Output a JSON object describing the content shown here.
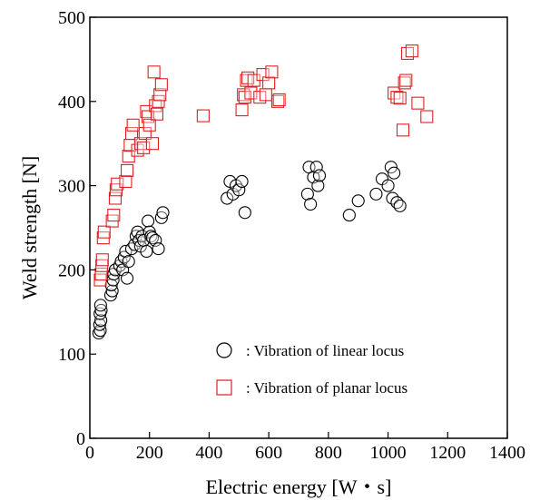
{
  "chart_data": {
    "type": "scatter",
    "xlabel": "Electric energy [W・s]",
    "ylabel": "Weld strength [N]",
    "xlim": [
      0,
      1400
    ],
    "ylim": [
      0,
      500
    ],
    "xticks": [
      "0",
      "200",
      "400",
      "600",
      "800",
      "1000",
      "1200",
      "1400"
    ],
    "yticks": [
      "0",
      "100",
      "200",
      "300",
      "400",
      "500"
    ],
    "grid": false,
    "legend_position": "bottom-right",
    "series": [
      {
        "label": ": Vibration of linear locus",
        "marker": "circle",
        "color": "#000000",
        "points": [
          [
            30,
            125
          ],
          [
            35,
            128
          ],
          [
            33,
            135
          ],
          [
            37,
            140
          ],
          [
            34,
            148
          ],
          [
            38,
            152
          ],
          [
            36,
            158
          ],
          [
            70,
            170
          ],
          [
            75,
            175
          ],
          [
            72,
            182
          ],
          [
            78,
            188
          ],
          [
            80,
            195
          ],
          [
            85,
            200
          ],
          [
            100,
            205
          ],
          [
            105,
            210
          ],
          [
            110,
            200
          ],
          [
            115,
            215
          ],
          [
            120,
            222
          ],
          [
            125,
            190
          ],
          [
            130,
            210
          ],
          [
            140,
            225
          ],
          [
            150,
            230
          ],
          [
            155,
            240
          ],
          [
            160,
            245
          ],
          [
            165,
            235
          ],
          [
            170,
            228
          ],
          [
            175,
            240
          ],
          [
            180,
            235
          ],
          [
            190,
            222
          ],
          [
            195,
            258
          ],
          [
            200,
            245
          ],
          [
            205,
            240
          ],
          [
            210,
            238
          ],
          [
            220,
            235
          ],
          [
            230,
            225
          ],
          [
            240,
            262
          ],
          [
            245,
            268
          ],
          [
            460,
            285
          ],
          [
            470,
            305
          ],
          [
            480,
            290
          ],
          [
            490,
            300
          ],
          [
            500,
            295
          ],
          [
            510,
            305
          ],
          [
            520,
            268
          ],
          [
            730,
            290
          ],
          [
            735,
            322
          ],
          [
            740,
            278
          ],
          [
            750,
            310
          ],
          [
            760,
            322
          ],
          [
            765,
            300
          ],
          [
            770,
            312
          ],
          [
            870,
            265
          ],
          [
            900,
            282
          ],
          [
            960,
            290
          ],
          [
            980,
            308
          ],
          [
            1000,
            300
          ],
          [
            1010,
            322
          ],
          [
            1015,
            285
          ],
          [
            1020,
            315
          ],
          [
            1030,
            280
          ],
          [
            1040,
            276
          ]
        ]
      },
      {
        "label": ": Vibration of planar locus",
        "marker": "square",
        "color": "#e02020",
        "points": [
          [
            35,
            188
          ],
          [
            38,
            195
          ],
          [
            40,
            205
          ],
          [
            42,
            212
          ],
          [
            45,
            238
          ],
          [
            48,
            245
          ],
          [
            75,
            258
          ],
          [
            80,
            265
          ],
          [
            85,
            285
          ],
          [
            88,
            295
          ],
          [
            92,
            302
          ],
          [
            120,
            305
          ],
          [
            125,
            318
          ],
          [
            130,
            335
          ],
          [
            135,
            348
          ],
          [
            140,
            362
          ],
          [
            145,
            372
          ],
          [
            160,
            342
          ],
          [
            170,
            350
          ],
          [
            180,
            345
          ],
          [
            185,
            362
          ],
          [
            190,
            388
          ],
          [
            195,
            382
          ],
          [
            200,
            372
          ],
          [
            210,
            350
          ],
          [
            215,
            435
          ],
          [
            220,
            395
          ],
          [
            225,
            385
          ],
          [
            230,
            400
          ],
          [
            235,
            408
          ],
          [
            240,
            420
          ],
          [
            380,
            383
          ],
          [
            510,
            390
          ],
          [
            515,
            408
          ],
          [
            520,
            405
          ],
          [
            525,
            425
          ],
          [
            530,
            428
          ],
          [
            540,
            410
          ],
          [
            550,
            425
          ],
          [
            570,
            405
          ],
          [
            580,
            432
          ],
          [
            590,
            408
          ],
          [
            600,
            422
          ],
          [
            610,
            435
          ],
          [
            630,
            400
          ],
          [
            635,
            402
          ],
          [
            1020,
            410
          ],
          [
            1030,
            405
          ],
          [
            1040,
            404
          ],
          [
            1050,
            366
          ],
          [
            1055,
            422
          ],
          [
            1060,
            425
          ],
          [
            1065,
            457
          ],
          [
            1080,
            460
          ],
          [
            1100,
            398
          ],
          [
            1130,
            382
          ]
        ]
      }
    ]
  }
}
